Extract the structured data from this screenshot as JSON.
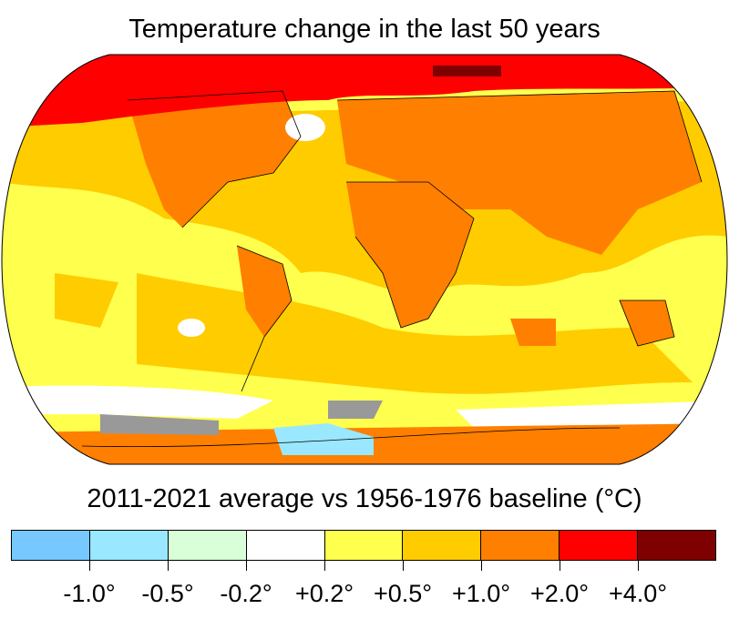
{
  "title": "Temperature change in the last 50 years",
  "subtitle": "2011-2021 average vs 1956-1976 baseline (°C)",
  "legend": {
    "colors": [
      "#77c8ff",
      "#99e8ff",
      "#d8ffd8",
      "#ffffff",
      "#ffff4d",
      "#ffcc00",
      "#ff7f00",
      "#ff0000",
      "#7f0000"
    ],
    "ticks": [
      "-1.0°",
      "-0.5°",
      "-0.2°",
      "+0.2°",
      "+0.5°",
      "+1.0°",
      "+2.0°",
      "+4.0°"
    ]
  },
  "no_data_color": "#999999"
}
